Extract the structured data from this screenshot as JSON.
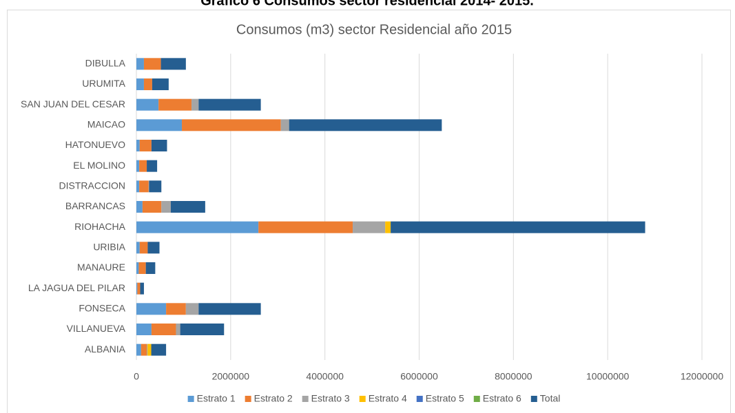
{
  "chart_data": {
    "type": "stacked_barh",
    "caption": "Gráfico 6 Consumos sector residencial 2014- 2015.",
    "title": "Consumos (m3) sector Residencial año 2015",
    "categories": [
      "DIBULLA",
      "URUMITA",
      "SAN JUAN DEL CESAR",
      "MAICAO",
      "HATONUEVO",
      "EL MOLINO",
      "DISTRACCION",
      "BARRANCAS",
      "RIOHACHA",
      "URIBIA",
      "MANAURE",
      "LA JAGUA DEL PILAR",
      "FONSECA",
      "VILLANUEVA",
      "ALBANIA"
    ],
    "series": [
      {
        "name": "Estrato 1",
        "color": "#5b9bd5",
        "values": [
          160000,
          160000,
          470000,
          965000,
          70000,
          60000,
          60000,
          130000,
          2590000,
          70000,
          50000,
          20000,
          630000,
          320000,
          100000
        ]
      },
      {
        "name": "Estrato 2",
        "color": "#ed7d31",
        "values": [
          360000,
          175000,
          700000,
          2100000,
          250000,
          160000,
          200000,
          400000,
          2000000,
          170000,
          150000,
          60000,
          420000,
          520000,
          120000
        ]
      },
      {
        "name": "Estrato 3",
        "color": "#a5a5a5",
        "values": [
          0,
          0,
          150000,
          175000,
          0,
          0,
          10000,
          200000,
          690000,
          0,
          0,
          0,
          270000,
          90000,
          15000
        ]
      },
      {
        "name": "Estrato 4",
        "color": "#ffc000",
        "values": [
          0,
          0,
          0,
          0,
          0,
          0,
          0,
          0,
          115000,
          0,
          0,
          0,
          0,
          0,
          80000
        ]
      },
      {
        "name": "Estrato 5",
        "color": "#4472c4",
        "values": [
          0,
          0,
          0,
          0,
          0,
          0,
          0,
          0,
          0,
          0,
          0,
          0,
          0,
          0,
          0
        ]
      },
      {
        "name": "Estrato 6",
        "color": "#70ad47",
        "values": [
          0,
          0,
          0,
          0,
          0,
          0,
          0,
          0,
          0,
          0,
          0,
          0,
          0,
          0,
          0
        ]
      },
      {
        "name": "Total",
        "color": "#255e91",
        "values": [
          530000,
          350000,
          1320000,
          3240000,
          330000,
          220000,
          260000,
          730000,
          5400000,
          250000,
          200000,
          80000,
          1320000,
          930000,
          315000
        ]
      }
    ],
    "xlim": [
      0,
      12000000
    ],
    "xticks": [
      0,
      2000000,
      4000000,
      6000000,
      8000000,
      10000000,
      12000000
    ],
    "grid": true,
    "legend": "bottom"
  }
}
